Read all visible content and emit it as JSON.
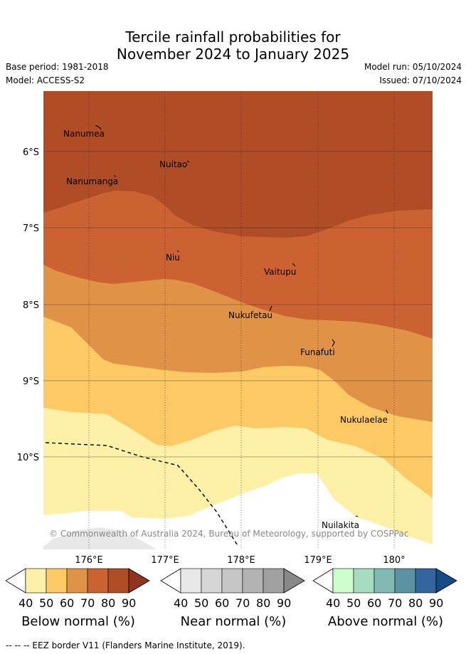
{
  "title_line1": "Tercile rainfall probabilities for",
  "title_line2": "November 2024 to January 2025",
  "base_period": "Base period: 1981-2018",
  "model": "Model: ACCESS-S2",
  "model_run": "Model run: 05/10/2024",
  "issued": "Issued: 07/10/2024",
  "lat_labels": [
    "6°S",
    "7°S",
    "8°S",
    "9°S",
    "10°S"
  ],
  "lon_labels": [
    "176°E",
    "177°E",
    "178°E",
    "179°E",
    "180°"
  ],
  "places": [
    "Nanumea",
    "Nuitao",
    "Nanumanga",
    "Niu",
    "Vaitupu",
    "Nukufetau",
    "Funafuti",
    "Nukulaelae",
    "Nuilakita"
  ],
  "copyright": "© Commonwealth of Australia 2024, Bureau of Meteorology, supported by COSPPac",
  "colorbars": [
    {
      "title": "Below normal (%)",
      "ticks": [
        "40",
        "50",
        "60",
        "70",
        "80",
        "90"
      ],
      "colors": [
        "#fff0a8",
        "#fdc965",
        "#e09346",
        "#cc6231",
        "#b04c26",
        "#8f3420"
      ]
    },
    {
      "title": "Near normal (%)",
      "ticks": [
        "40",
        "50",
        "60",
        "70",
        "80",
        "90"
      ],
      "colors": [
        "#e8e8e8",
        "#d6d6d6",
        "#c6c6c6",
        "#b3b3b3",
        "#a0a0a0",
        "#888888"
      ]
    },
    {
      "title": "Above normal (%)",
      "ticks": [
        "40",
        "50",
        "60",
        "70",
        "80",
        "90"
      ],
      "colors": [
        "#ccffcc",
        "#a5dcc0",
        "#82b9b4",
        "#5c93a3",
        "#34659e",
        "#164a85"
      ]
    }
  ],
  "footer": "--  --  -- EEZ border V11 (Flanders Marine Institute, 2019)."
}
